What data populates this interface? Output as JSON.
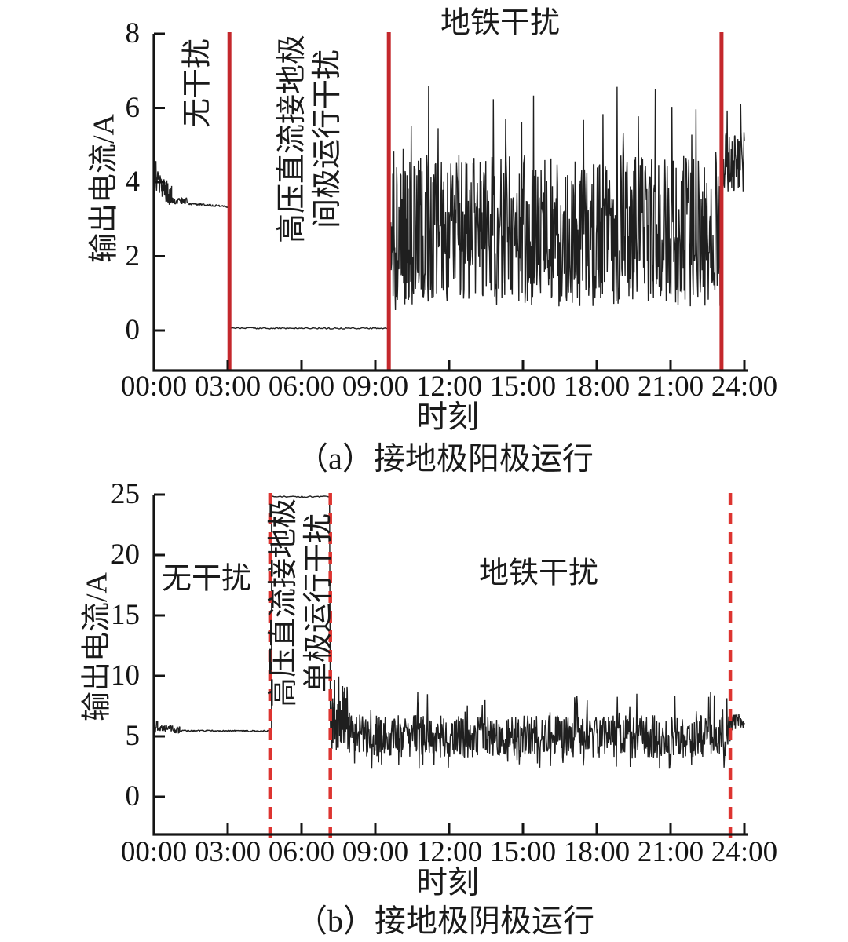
{
  "figure": {
    "background": "#ffffff",
    "signal_color": "#1f1f1f",
    "axis_color": "#141414",
    "divider_solid_color": "#c4282c",
    "divider_dashed_color": "#dd3430"
  },
  "chart_data": [
    {
      "id": "a",
      "type": "line",
      "caption": "（a）接地极阳极运行",
      "xlabel": "时刻",
      "ylabel": "输出电流/A",
      "x_tick_labels": [
        "00:00",
        "03:00",
        "06:00",
        "09:00",
        "12:00",
        "15:00",
        "18:00",
        "21:00",
        "24:00"
      ],
      "y_tick_labels": [
        "0",
        "2",
        "4",
        "6",
        "8"
      ],
      "ylim": [
        0,
        8
      ],
      "x_range_hours": [
        0,
        24
      ],
      "grid": false,
      "legend": "none",
      "regions": [
        {
          "label": "无干扰",
          "from_hour": 0,
          "to_hour": 3.07
        },
        {
          "label": "高压直流接地极\n间极运行干扰",
          "from_hour": 3.07,
          "to_hour": 9.55
        },
        {
          "label": "地铁干扰",
          "from_hour": 9.55,
          "to_hour": 23.07
        }
      ],
      "dividers": {
        "style": "solid",
        "hours": [
          3.07,
          9.55,
          23.07
        ]
      },
      "series": {
        "name": "输出电流",
        "unit": "A",
        "segments": [
          {
            "t0": 0.0,
            "t1": 0.12,
            "n": 10,
            "level": 4.15,
            "spread": 0.45,
            "min": 3.55,
            "max": 4.72,
            "seed": 101
          },
          {
            "t0": 0.12,
            "t1": 0.72,
            "n": 50,
            "level": 4.0,
            "level_end": 3.6,
            "spread": 0.32,
            "min": 3.35,
            "max": 4.65,
            "seed": 102
          },
          {
            "t0": 0.72,
            "t1": 1.35,
            "n": 42,
            "level": 3.5,
            "spread": 0.1,
            "min": 3.34,
            "max": 3.7,
            "seed": 103
          },
          {
            "t0": 1.35,
            "t1": 3.07,
            "n": 90,
            "level": 3.42,
            "level_end": 3.34,
            "spread": 0.03,
            "min": 3.28,
            "max": 3.52,
            "seed": 104
          },
          {
            "t0": 3.07,
            "t1": 9.55,
            "n": 130,
            "level": 0.06,
            "spread": 0.02,
            "min": 0.02,
            "max": 0.12,
            "seed": 105
          },
          {
            "t0": 9.55,
            "t1": 10.4,
            "n": 64,
            "level": 2.5,
            "spread": 2.0,
            "min": 0.1,
            "max": 6.6,
            "spike_p": 0.08,
            "spike": 1.8,
            "dip_p": 0.1,
            "dip": 0.5,
            "seed": 106
          },
          {
            "t0": 10.4,
            "t1": 23.07,
            "n": 660,
            "level": 2.7,
            "spread": 2.05,
            "min": 0.08,
            "max": 7.75,
            "spike_p": 0.05,
            "spike": 2.8,
            "dip_p": 0.08,
            "dip": 0.7,
            "seed": 107
          },
          {
            "t0": 23.07,
            "t1": 24.0,
            "n": 56,
            "level": 4.55,
            "spread": 0.8,
            "min": 3.35,
            "max": 6.6,
            "spike_p": 0.1,
            "spike": 1.2,
            "seed": 108
          }
        ]
      }
    },
    {
      "id": "b",
      "type": "line",
      "caption": "（b）接地极阴极运行",
      "xlabel": "时刻",
      "ylabel": "输出电流/A",
      "x_tick_labels": [
        "00:00",
        "03:00",
        "06:00",
        "09:00",
        "12:00",
        "15:00",
        "18:00",
        "21:00",
        "24:00"
      ],
      "y_tick_labels": [
        "0",
        "5",
        "10",
        "15",
        "20",
        "25"
      ],
      "ylim": [
        0,
        25
      ],
      "x_range_hours": [
        0,
        24
      ],
      "grid": false,
      "legend": "none",
      "regions": [
        {
          "label": "无干扰",
          "from_hour": 0,
          "to_hour": 4.72
        },
        {
          "label": "高压直流接地极\n单极运行干扰",
          "from_hour": 4.72,
          "to_hour": 7.17
        },
        {
          "label": "地铁干扰",
          "from_hour": 7.17,
          "to_hour": 23.43
        }
      ],
      "dividers": {
        "style": "dashed",
        "hours": [
          4.72,
          7.17,
          23.43
        ]
      },
      "series": {
        "name": "输出电流",
        "unit": "A",
        "segments": [
          {
            "t0": 0.0,
            "t1": 0.15,
            "n": 12,
            "level": 5.8,
            "spread": 0.55,
            "min": 4.7,
            "max": 7.0,
            "seed": 201
          },
          {
            "t0": 0.15,
            "t1": 1.05,
            "n": 70,
            "level": 5.7,
            "level_end": 5.5,
            "spread": 0.3,
            "min": 4.8,
            "max": 6.9,
            "spike_p": 0.05,
            "spike": 0.7,
            "seed": 202
          },
          {
            "t0": 1.05,
            "t1": 4.72,
            "n": 160,
            "level": 5.45,
            "spread": 0.06,
            "min": 5.25,
            "max": 5.7,
            "seed": 203
          },
          {
            "t0": 4.72,
            "t1": 4.78,
            "n": 4,
            "level": 5.6,
            "spread": 0.08,
            "min": 5.4,
            "max": 5.85,
            "seed": 204
          },
          {
            "t0": 4.78,
            "t1": 7.14,
            "n": 46,
            "level": 24.82,
            "spread": 0.06,
            "min": 24.6,
            "max": 24.95,
            "seed": 205
          },
          {
            "t0": 7.17,
            "t1": 7.95,
            "n": 70,
            "level": 6.0,
            "spread": 2.3,
            "min": 2.2,
            "max": 10.3,
            "spike_p": 0.07,
            "spike": 2.6,
            "dip_p": 0.05,
            "dip": 1.2,
            "seed": 206
          },
          {
            "t0": 7.95,
            "t1": 23.42,
            "n": 820,
            "level": 5.0,
            "spread": 1.75,
            "min": 0.3,
            "max": 10.2,
            "spike_p": 0.045,
            "spike": 2.8,
            "dip_p": 0.07,
            "dip": 1.6,
            "seed": 207
          },
          {
            "t0": 23.42,
            "t1": 24.0,
            "n": 46,
            "level": 6.2,
            "spread": 0.7,
            "min": 4.9,
            "max": 7.7,
            "spike_p": 0.08,
            "spike": 0.9,
            "seed": 208
          }
        ]
      }
    }
  ]
}
